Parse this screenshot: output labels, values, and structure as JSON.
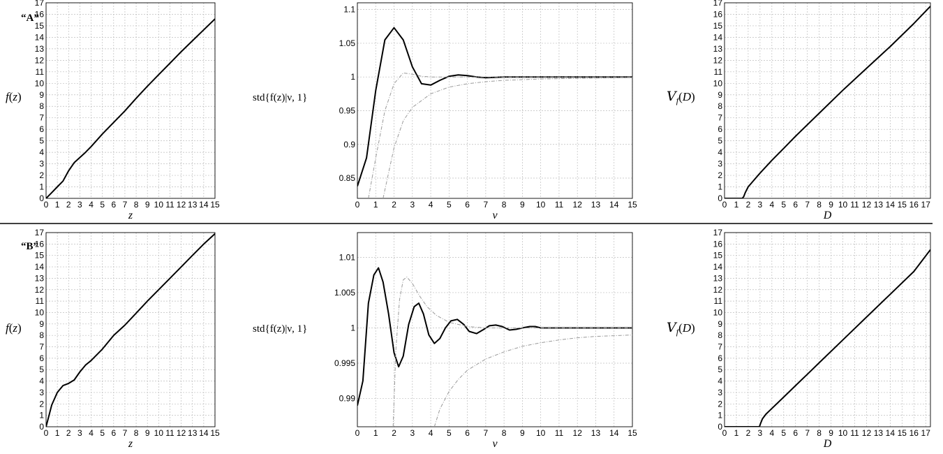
{
  "rows": [
    {
      "label": "“A”"
    },
    {
      "label": "“B”"
    }
  ],
  "colors": {
    "main_curve": "#000000",
    "bound_curve": "#999999",
    "grid": "#bdbdbd",
    "axis": "#000000"
  },
  "chart_data": [
    {
      "type": "line",
      "row": "A",
      "panel": "f(z)",
      "ylabel_parts": [
        "f",
        "(",
        "z",
        ")"
      ],
      "xlabel": "z",
      "xlim": [
        0,
        15
      ],
      "ylim": [
        0,
        17
      ],
      "xticks": [
        0,
        1,
        2,
        3,
        4,
        5,
        6,
        7,
        8,
        9,
        10,
        11,
        12,
        13,
        14,
        15
      ],
      "yticks": [
        0,
        1,
        2,
        3,
        4,
        5,
        6,
        7,
        8,
        9,
        10,
        11,
        12,
        13,
        14,
        15,
        16,
        17
      ],
      "grid": true,
      "series": [
        {
          "style": "main",
          "x": [
            0,
            0.5,
            1,
            1.5,
            2,
            2.5,
            3,
            3.5,
            4,
            5,
            6,
            7,
            8,
            9,
            10,
            11,
            12,
            13,
            14,
            15
          ],
          "y": [
            0,
            0.5,
            1,
            1.5,
            2.4,
            3.1,
            3.55,
            4,
            4.5,
            5.6,
            6.6,
            7.6,
            8.7,
            9.75,
            10.75,
            11.75,
            12.75,
            13.7,
            14.65,
            15.6
          ]
        }
      ]
    },
    {
      "type": "line",
      "row": "A",
      "panel": "std",
      "ylabel_text": "std{f(z)|ν, 1}",
      "xlabel": "ν",
      "xlim": [
        0,
        15
      ],
      "ylim": [
        0.82,
        1.11
      ],
      "xticks": [
        0,
        1,
        2,
        3,
        4,
        5,
        6,
        7,
        8,
        9,
        10,
        11,
        12,
        13,
        14,
        15
      ],
      "yticks": [
        0.85,
        0.9,
        0.95,
        1,
        1.05,
        1.1
      ],
      "ytick_labels": [
        "0.85",
        "0.9",
        "0.95",
        "1",
        "1.05",
        "1.1"
      ],
      "grid": true,
      "series": [
        {
          "style": "main",
          "x": [
            0,
            0.5,
            1,
            1.5,
            2,
            2.5,
            3,
            3.5,
            4,
            4.5,
            5,
            5.5,
            6,
            6.5,
            7,
            8,
            9,
            10,
            11,
            12,
            13,
            14,
            15
          ],
          "y": [
            0.838,
            0.88,
            0.98,
            1.055,
            1.073,
            1.055,
            1.015,
            0.99,
            0.988,
            0.995,
            1.001,
            1.003,
            1.002,
            1.0,
            0.999,
            1.0,
            1.0,
            1.0,
            1.0,
            1.0,
            1.0,
            1.0,
            1.0
          ]
        },
        {
          "style": "bound",
          "x": [
            0.6,
            1,
            1.5,
            2,
            2.5,
            3,
            3.5,
            4,
            5,
            6,
            8,
            10,
            15
          ],
          "y": [
            0.82,
            0.88,
            0.95,
            0.99,
            1.006,
            1.004,
            1.001,
            1.0,
            1.0,
            1.0,
            1.0,
            1.0,
            1.0
          ]
        },
        {
          "style": "bound",
          "x": [
            1.4,
            2,
            2.5,
            3,
            4,
            5,
            6,
            7,
            8,
            10,
            12,
            15
          ],
          "y": [
            0.82,
            0.895,
            0.935,
            0.955,
            0.975,
            0.985,
            0.99,
            0.993,
            0.995,
            0.997,
            0.998,
            0.999
          ]
        }
      ]
    },
    {
      "type": "line",
      "row": "A",
      "panel": "V",
      "ylabel_parts": [
        "V",
        "f",
        "(",
        "D",
        ")"
      ],
      "xlabel": "D",
      "xlim": [
        0,
        17.4
      ],
      "ylim": [
        0,
        17
      ],
      "xticks": [
        0,
        1,
        2,
        3,
        4,
        5,
        6,
        7,
        8,
        9,
        10,
        11,
        12,
        13,
        14,
        15,
        16,
        17
      ],
      "yticks": [
        0,
        1,
        2,
        3,
        4,
        5,
        6,
        7,
        8,
        9,
        10,
        11,
        12,
        13,
        14,
        15,
        16,
        17
      ],
      "grid": true,
      "series": [
        {
          "style": "main",
          "x": [
            0,
            1.5,
            1.62,
            1.75,
            2,
            2.5,
            3,
            4,
            5,
            6,
            8,
            10,
            12,
            14,
            16,
            17.4
          ],
          "y": [
            0,
            0,
            0.15,
            0.5,
            1.0,
            1.6,
            2.2,
            3.3,
            4.35,
            5.4,
            7.4,
            9.4,
            11.3,
            13.2,
            15.2,
            16.7
          ]
        }
      ]
    },
    {
      "type": "line",
      "row": "B",
      "panel": "f(z)",
      "ylabel_parts": [
        "f",
        "(",
        "z",
        ")"
      ],
      "xlabel": "z",
      "xlim": [
        0,
        15
      ],
      "ylim": [
        0,
        17
      ],
      "xticks": [
        0,
        1,
        2,
        3,
        4,
        5,
        6,
        7,
        8,
        9,
        10,
        11,
        12,
        13,
        14,
        15
      ],
      "yticks": [
        0,
        1,
        2,
        3,
        4,
        5,
        6,
        7,
        8,
        9,
        10,
        11,
        12,
        13,
        14,
        15,
        16,
        17
      ],
      "grid": true,
      "series": [
        {
          "style": "main",
          "x": [
            0,
            0.5,
            1,
            1.5,
            2,
            2.5,
            3,
            3.5,
            4,
            5,
            6,
            7,
            8,
            9,
            10,
            11,
            12,
            13,
            14,
            15
          ],
          "y": [
            0,
            1.9,
            3.0,
            3.6,
            3.8,
            4.1,
            4.8,
            5.4,
            5.8,
            6.8,
            8.0,
            8.9,
            9.95,
            11.0,
            12.0,
            13.0,
            14.0,
            15.0,
            16.0,
            16.9
          ]
        }
      ]
    },
    {
      "type": "line",
      "row": "B",
      "panel": "std",
      "ylabel_text": "std{f(z)|ν, 1}",
      "xlabel": "ν",
      "xlim": [
        0,
        15
      ],
      "ylim": [
        0.986,
        1.0135
      ],
      "xticks": [
        0,
        1,
        2,
        3,
        4,
        5,
        6,
        7,
        8,
        9,
        10,
        11,
        12,
        13,
        14,
        15
      ],
      "yticks": [
        0.99,
        0.995,
        1,
        1.005,
        1.01
      ],
      "ytick_labels": [
        "0.99",
        "0.995",
        "1",
        "1.005",
        "1.01"
      ],
      "grid": true,
      "series": [
        {
          "style": "main",
          "x": [
            0,
            0.3,
            0.6,
            0.9,
            1.15,
            1.4,
            1.7,
            2.0,
            2.25,
            2.5,
            2.8,
            3.1,
            3.35,
            3.6,
            3.9,
            4.2,
            4.5,
            4.8,
            5.1,
            5.45,
            5.8,
            6.1,
            6.5,
            6.9,
            7.2,
            7.55,
            7.9,
            8.3,
            8.65,
            9.0,
            9.4,
            9.7,
            10.0,
            10.5,
            11,
            12,
            13,
            14,
            15
          ],
          "y": [
            0.989,
            0.9925,
            1.0035,
            1.0075,
            1.0085,
            1.0065,
            1.002,
            0.9965,
            0.9945,
            0.996,
            1.0005,
            1.003,
            1.0035,
            1.002,
            0.999,
            0.9978,
            0.9985,
            1.0,
            1.001,
            1.0012,
            1.0005,
            0.9995,
            0.9992,
            0.9998,
            1.0003,
            1.0004,
            1.0002,
            0.9997,
            0.9998,
            1.0,
            1.0002,
            1.0002,
            1.0,
            1.0,
            1.0,
            1.0,
            1.0,
            1.0,
            1.0
          ]
        },
        {
          "style": "bound",
          "x": [
            1.95,
            2.1,
            2.3,
            2.5,
            2.7,
            3.0,
            3.4,
            3.8,
            4.3,
            5,
            6,
            7,
            8,
            10,
            12,
            15
          ],
          "y": [
            0.986,
            0.997,
            1.004,
            1.0068,
            1.0072,
            1.0063,
            1.0045,
            1.003,
            1.0018,
            1.0008,
            1.0002,
            1.0,
            1.0,
            1.0,
            1.0,
            1.0
          ]
        },
        {
          "style": "bound",
          "x": [
            4.2,
            4.5,
            5,
            5.5,
            6,
            7,
            8,
            9,
            10,
            11,
            12,
            13,
            14,
            15
          ],
          "y": [
            0.986,
            0.9885,
            0.991,
            0.9927,
            0.994,
            0.9956,
            0.9966,
            0.9974,
            0.9979,
            0.9983,
            0.9986,
            0.9988,
            0.9989,
            0.999
          ]
        }
      ]
    },
    {
      "type": "line",
      "row": "B",
      "panel": "V",
      "ylabel_parts": [
        "V",
        "f",
        "(",
        "D",
        ")"
      ],
      "xlabel": "D",
      "xlim": [
        0,
        17.4
      ],
      "ylim": [
        0,
        17
      ],
      "xticks": [
        0,
        1,
        2,
        3,
        4,
        5,
        6,
        7,
        8,
        9,
        10,
        11,
        12,
        13,
        14,
        15,
        16,
        17
      ],
      "yticks": [
        0,
        1,
        2,
        3,
        4,
        5,
        6,
        7,
        8,
        9,
        10,
        11,
        12,
        13,
        14,
        15,
        16,
        17
      ],
      "grid": true,
      "series": [
        {
          "style": "main",
          "x": [
            0,
            2.95,
            3.05,
            3.2,
            3.5,
            4,
            5,
            6,
            7,
            8,
            10,
            12,
            14,
            16,
            17.4
          ],
          "y": [
            0,
            0,
            0.3,
            0.7,
            1.1,
            1.6,
            2.6,
            3.6,
            4.6,
            5.6,
            7.6,
            9.6,
            11.6,
            13.6,
            15.5
          ]
        }
      ]
    }
  ]
}
